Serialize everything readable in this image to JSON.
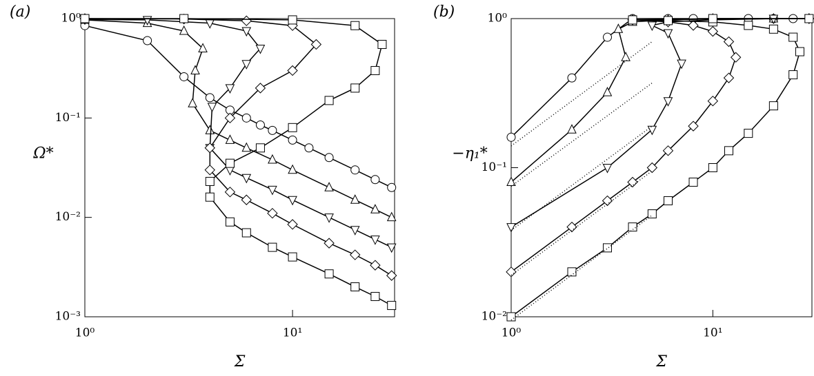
{
  "chart_data": [
    {
      "type": "scatter",
      "panel_label": "(a)",
      "x_label": "Σ",
      "y_label": "Ω*",
      "log_x": true,
      "log_y": true,
      "xlim": [
        1,
        31
      ],
      "ylim": [
        0.001,
        1
      ],
      "xticks": [
        {
          "value": 1,
          "label": "10⁰"
        },
        {
          "value": 10,
          "label": "10¹"
        }
      ],
      "yticks": [
        {
          "value": 0.001,
          "label": "10⁻³"
        },
        {
          "value": 0.01,
          "label": "10⁻²"
        },
        {
          "value": 0.1,
          "label": "10⁻¹"
        },
        {
          "value": 1,
          "label": "10⁰"
        }
      ],
      "series": [
        {
          "marker": "circle",
          "color": "#000",
          "x": [
            1,
            2,
            3,
            4,
            5,
            6,
            7,
            8,
            10,
            12,
            15,
            20,
            25,
            30
          ],
          "values": [
            0.85,
            0.6,
            0.26,
            0.16,
            0.12,
            0.1,
            0.085,
            0.075,
            0.06,
            0.05,
            0.04,
            0.03,
            0.024,
            0.02
          ]
        },
        {
          "marker": "triangle",
          "color": "#000",
          "x": [
            1,
            2,
            3,
            3.7,
            3.4,
            3.3,
            4,
            5,
            6,
            8,
            10,
            15,
            20,
            25,
            30
          ],
          "values": [
            0.97,
            0.9,
            0.75,
            0.5,
            0.3,
            0.14,
            0.075,
            0.06,
            0.05,
            0.038,
            0.03,
            0.02,
            0.015,
            0.012,
            0.01
          ]
        },
        {
          "marker": "triangle-down",
          "color": "#000",
          "x": [
            1,
            2,
            4,
            6,
            7,
            6,
            5,
            4.1,
            4,
            5,
            6,
            8,
            10,
            15,
            20,
            25,
            30
          ],
          "values": [
            0.98,
            0.97,
            0.9,
            0.75,
            0.5,
            0.35,
            0.2,
            0.13,
            0.05,
            0.03,
            0.025,
            0.019,
            0.015,
            0.01,
            0.0075,
            0.006,
            0.005
          ]
        },
        {
          "marker": "diamond",
          "color": "#000",
          "x": [
            1,
            3,
            6,
            10,
            13,
            10,
            7,
            5,
            4,
            4,
            5,
            6,
            8,
            10,
            15,
            20,
            25,
            30
          ],
          "values": [
            1,
            0.99,
            0.95,
            0.85,
            0.55,
            0.3,
            0.2,
            0.1,
            0.05,
            0.03,
            0.018,
            0.015,
            0.011,
            0.0085,
            0.0055,
            0.0042,
            0.0033,
            0.0026
          ]
        },
        {
          "marker": "square",
          "color": "#000",
          "x": [
            1,
            3,
            10,
            20,
            27,
            25,
            20,
            15,
            10,
            7,
            5,
            4,
            4,
            5,
            6,
            8,
            10,
            15,
            20,
            25,
            30
          ],
          "values": [
            1,
            1,
            0.97,
            0.85,
            0.55,
            0.3,
            0.2,
            0.15,
            0.08,
            0.05,
            0.035,
            0.023,
            0.016,
            0.009,
            0.007,
            0.005,
            0.004,
            0.0027,
            0.002,
            0.0016,
            0.0013
          ]
        }
      ]
    },
    {
      "type": "scatter",
      "panel_label": "(b)",
      "x_label": "Σ",
      "y_label": "−η₁*",
      "log_x": true,
      "log_y": true,
      "xlim": [
        1,
        31
      ],
      "ylim": [
        0.01,
        1
      ],
      "xticks": [
        {
          "value": 1,
          "label": "10⁰"
        },
        {
          "value": 10,
          "label": "10¹"
        }
      ],
      "yticks": [
        {
          "value": 0.01,
          "label": "10⁻²"
        },
        {
          "value": 0.1,
          "label": "10⁻¹"
        },
        {
          "value": 1,
          "label": "10⁰"
        }
      ],
      "series": [
        {
          "marker": "circle",
          "color": "#000",
          "x": [
            1,
            2,
            3,
            4,
            6,
            8,
            10,
            15,
            20,
            25,
            30
          ],
          "values": [
            0.16,
            0.4,
            0.75,
            1,
            1,
            1,
            1,
            1,
            1,
            1,
            1
          ]
        },
        {
          "marker": "triangle",
          "color": "#000",
          "x": [
            1,
            2,
            3,
            3.7,
            3.4,
            4,
            6,
            10,
            20,
            30
          ],
          "values": [
            0.08,
            0.18,
            0.32,
            0.55,
            0.85,
            0.95,
            0.98,
            1,
            1,
            1
          ]
        },
        {
          "marker": "triangle-down",
          "color": "#000",
          "x": [
            1,
            3,
            5,
            6,
            7,
            6,
            5,
            6,
            10,
            20,
            30
          ],
          "values": [
            0.04,
            0.1,
            0.18,
            0.28,
            0.5,
            0.8,
            0.9,
            0.95,
            0.98,
            1,
            1
          ]
        },
        {
          "marker": "diamond",
          "color": "#000",
          "x": [
            1,
            2,
            3,
            4,
            5,
            6,
            8,
            10,
            12,
            13,
            12,
            10,
            8,
            6,
            4,
            10,
            30
          ],
          "values": [
            0.02,
            0.04,
            0.06,
            0.08,
            0.1,
            0.13,
            0.19,
            0.28,
            0.4,
            0.55,
            0.7,
            0.82,
            0.9,
            0.95,
            0.98,
            0.99,
            1
          ]
        },
        {
          "marker": "square",
          "color": "#000",
          "x": [
            1,
            2,
            3,
            4,
            5,
            6,
            8,
            10,
            12,
            15,
            20,
            25,
            27,
            25,
            20,
            15,
            10,
            6,
            4,
            10,
            30
          ],
          "values": [
            0.01,
            0.02,
            0.029,
            0.04,
            0.049,
            0.06,
            0.08,
            0.1,
            0.13,
            0.17,
            0.26,
            0.42,
            0.6,
            0.75,
            0.85,
            0.9,
            0.95,
            0.97,
            0.98,
            1,
            1
          ]
        },
        {
          "marker": "none",
          "dash": "1,3",
          "color": "#000",
          "x": [
            1,
            5
          ],
          "values": [
            0.14,
            0.7
          ]
        },
        {
          "marker": "none",
          "dash": "1,3",
          "color": "#000",
          "x": [
            1,
            5
          ],
          "values": [
            0.075,
            0.37
          ]
        },
        {
          "marker": "none",
          "dash": "1,3",
          "color": "#000",
          "x": [
            1,
            5
          ],
          "values": [
            0.038,
            0.19
          ]
        },
        {
          "marker": "none",
          "dash": "1,3",
          "color": "#000",
          "x": [
            1,
            5
          ],
          "values": [
            0.019,
            0.095
          ]
        },
        {
          "marker": "none",
          "dash": "1,3",
          "color": "#000",
          "x": [
            1,
            5
          ],
          "values": [
            0.0095,
            0.048
          ]
        }
      ]
    }
  ]
}
